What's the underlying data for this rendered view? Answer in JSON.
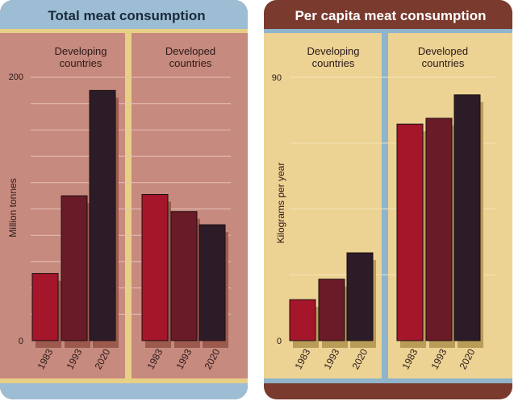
{
  "colors": {
    "left_bg": "#c78a7e",
    "right_bg": "#ecd293",
    "left_header": "#9dbdd4",
    "right_header": "#7a3a2e",
    "divider_left": "#e8cf86",
    "divider_right": "#8fb4cc",
    "bar_1983": "#a5162a",
    "bar_1993": "#6a1b28",
    "bar_2020": "#2b1c27",
    "shadow_left": "#9c5a4e",
    "shadow_right": "#b99c58"
  },
  "chart_data": [
    {
      "type": "bar",
      "title": "Total meat consumption",
      "ylabel": "Million tonnes",
      "ylim": [
        0,
        200
      ],
      "yticks": [
        "0",
        "200"
      ],
      "groups": [
        {
          "label_line1": "Developing",
          "label_line2": "countries",
          "categories": [
            "1983",
            "1993",
            "2020"
          ],
          "values": [
            51,
            110,
            190
          ]
        },
        {
          "label_line1": "Developed",
          "label_line2": "countries",
          "categories": [
            "1983",
            "1993",
            "2020"
          ],
          "values": [
            111,
            98,
            88
          ]
        }
      ]
    },
    {
      "type": "bar",
      "title": "Per capita meat consumption",
      "ylabel": "Kilograms per year",
      "ylim": [
        0,
        90
      ],
      "yticks": [
        "0",
        "90"
      ],
      "groups": [
        {
          "label_line1": "Developing",
          "label_line2": "countries",
          "categories": [
            "1983",
            "1993",
            "2020"
          ],
          "values": [
            14,
            21,
            30
          ]
        },
        {
          "label_line1": "Developed",
          "label_line2": "countries",
          "categories": [
            "1983",
            "1993",
            "2020"
          ],
          "values": [
            74,
            76,
            84
          ]
        }
      ]
    }
  ]
}
